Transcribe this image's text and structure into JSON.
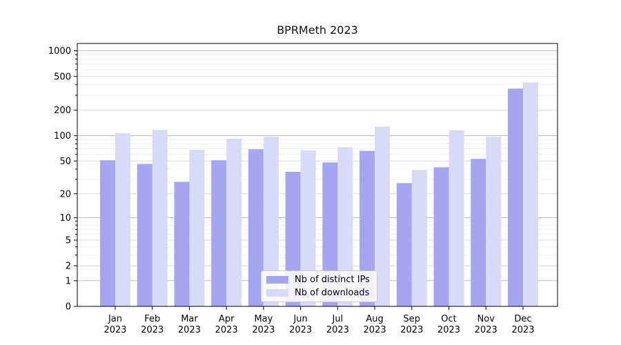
{
  "figure": {
    "title": "BPRMeth 2023"
  },
  "chart_data": {
    "type": "bar",
    "title": "BPRMeth 2023",
    "categories": [
      "Jan",
      "Feb",
      "Mar",
      "Apr",
      "May",
      "Jun",
      "Jul",
      "Aug",
      "Sep",
      "Oct",
      "Nov",
      "Dec"
    ],
    "year": "2023",
    "series": [
      {
        "name": "Nb of distinct IPs",
        "color": "#a5a5f0",
        "values": [
          51,
          46,
          28,
          51,
          69,
          37,
          48,
          66,
          27,
          42,
          53,
          360
        ]
      },
      {
        "name": "Nb of downloads",
        "color": "#d9d9f8",
        "values": [
          107,
          117,
          68,
          92,
          97,
          67,
          73,
          128,
          39,
          116,
          97,
          425
        ]
      }
    ],
    "yticks": [
      0,
      1,
      2,
      5,
      10,
      20,
      50,
      100,
      200,
      500,
      1000
    ],
    "minor_gridlines": [
      3,
      4,
      6,
      7,
      8,
      9,
      30,
      40,
      60,
      70,
      80,
      90,
      300,
      400,
      600,
      700,
      800,
      900
    ],
    "decade_ticks": [
      1,
      10,
      100,
      1000
    ],
    "scale": "log1p",
    "ylim": [
      0,
      1200
    ],
    "xlabel": "",
    "ylabel": "",
    "grid": true,
    "legend_position": "lower center",
    "colors": {
      "bar_distinct_ips": "#a5a5f0",
      "bar_downloads": "#d9d9f8",
      "grid_decade": "#b2b2b2",
      "grid_labeled": "#d8d8d8",
      "grid_minor": "#ebebeb",
      "axis": "#000000"
    }
  }
}
